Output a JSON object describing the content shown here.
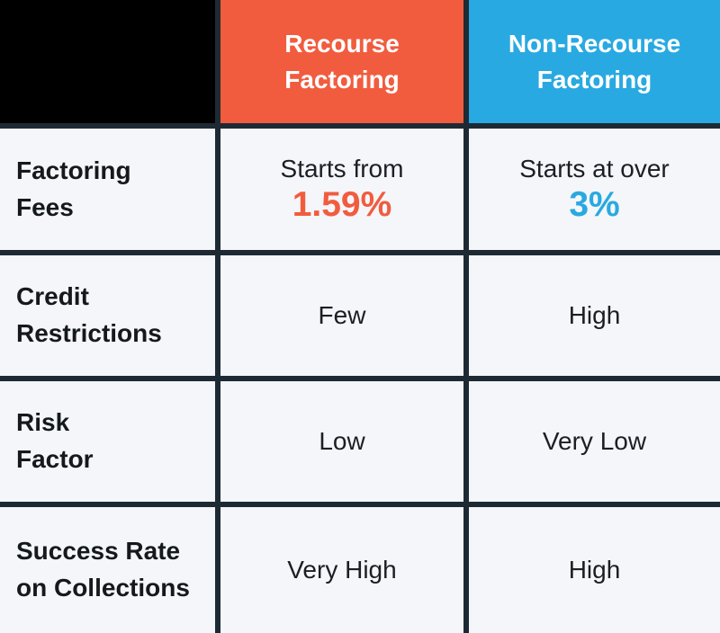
{
  "colors": {
    "recourse_accent": "#F15C3F",
    "nonrecourse_accent": "#29A9E1",
    "border": "#1E2A33",
    "cell_background": "#F4F6F9",
    "corner_background": "#000000",
    "header_text": "#FFFFFF",
    "body_text": "#1B1F23"
  },
  "header": {
    "corner_label": "",
    "columns": [
      {
        "label": "Recourse\nFactoring"
      },
      {
        "label": "Non-Recourse\nFactoring"
      }
    ]
  },
  "rows": [
    {
      "label": "Factoring\nFees",
      "recourse_prefix": "Starts from",
      "recourse_value": "1.59%",
      "nonrecourse_prefix": "Starts at over",
      "nonrecourse_value": "3%"
    },
    {
      "label": "Credit\nRestrictions",
      "recourse_value": "Few",
      "nonrecourse_value": "High"
    },
    {
      "label": "Risk\nFactor",
      "recourse_value": "Low",
      "nonrecourse_value": "Very Low"
    },
    {
      "label": "Success Rate\non Collections",
      "recourse_value": "Very High",
      "nonrecourse_value": "High"
    }
  ],
  "chart_data": {
    "type": "table",
    "columns": [
      "",
      "Recourse Factoring",
      "Non-Recourse Factoring"
    ],
    "rows": [
      [
        "Factoring Fees",
        "Starts from 1.59%",
        "Starts at over 3%"
      ],
      [
        "Credit Restrictions",
        "Few",
        "High"
      ],
      [
        "Risk Factor",
        "Low",
        "Very Low"
      ],
      [
        "Success Rate on Collections",
        "Very High",
        "High"
      ]
    ]
  }
}
